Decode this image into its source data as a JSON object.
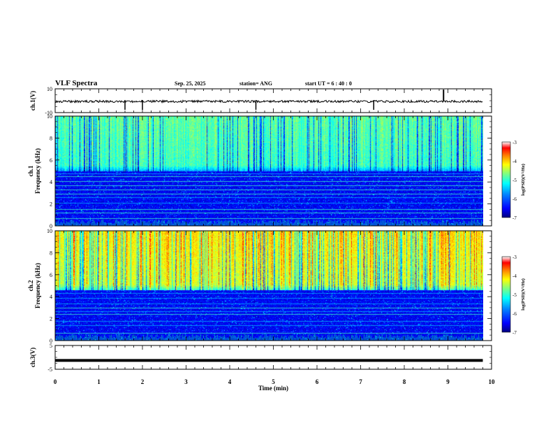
{
  "header": {
    "title": "VLF Spectra",
    "date": "Sep. 25, 2025",
    "station": "station= ANG",
    "start_time": "start  UT =   6  : 40 : 0"
  },
  "colors": {
    "spectrum": [
      "#000080",
      "#0000ff",
      "#0080ff",
      "#00ffff",
      "#80ff80",
      "#ffff00",
      "#ff8000",
      "#ff0000",
      "#ffffff"
    ],
    "axis": "#000000"
  },
  "chart_data": [
    {
      "type": "line",
      "title": "",
      "ylabel": "ch.1(V)",
      "ylim": [
        -10,
        10
      ],
      "yticks": [
        "10",
        "-10"
      ],
      "note": "waveform amplitude trace, near 0 V with occasional spikes",
      "spikes_min": [
        1.6,
        2.0,
        4.6,
        7.3,
        8.9
      ]
    },
    {
      "type": "heatmap",
      "ylabel": "ch.1 Frequency (kHz)",
      "ylim": [
        0,
        10
      ],
      "yticks": [
        "0",
        "2",
        "4",
        "6",
        "8",
        "10"
      ],
      "colorbar": {
        "label": "log(PSD)(V²/Hz)",
        "range": [
          -7,
          -3
        ],
        "ticks": [
          "-3",
          "-4",
          "-5",
          "-6",
          "-7"
        ]
      },
      "cutoff_khz": 5.0,
      "noise_lines_khz": [
        0.7,
        1.2,
        1.5,
        2.1,
        2.6,
        2.9,
        3.3,
        3.7,
        4.1,
        4.5,
        4.8
      ]
    },
    {
      "type": "heatmap",
      "ylabel": "ch.2 Frequency (kHz)",
      "ylim": [
        0,
        10
      ],
      "yticks": [
        "0",
        "2",
        "4",
        "6",
        "8",
        "10"
      ],
      "colorbar": {
        "label": "log(PSD)(V²/Hz)",
        "range": [
          -7,
          -3
        ],
        "ticks": [
          "-3",
          "-4",
          "-5",
          "-6",
          "-7"
        ]
      },
      "cutoff_khz": 4.6,
      "noise_lines_khz": [
        0.7,
        1.4,
        1.8,
        2.4,
        2.7,
        3.0,
        3.4,
        3.9,
        4.3
      ]
    },
    {
      "type": "line",
      "ylabel": "ch.3(V)",
      "ylim": [
        -5,
        5
      ],
      "yticks": [
        "5",
        "-5"
      ],
      "values": [
        {
          "x": 0,
          "y": -1.3
        },
        {
          "x": 9.8,
          "y": -1.3
        }
      ]
    }
  ],
  "xaxis": {
    "label": "Time  (min)",
    "range": [
      0,
      10
    ],
    "ticks": [
      "0",
      "1",
      "2",
      "3",
      "4",
      "5",
      "6",
      "7",
      "8",
      "9",
      "10"
    ],
    "data_end": 9.8
  }
}
